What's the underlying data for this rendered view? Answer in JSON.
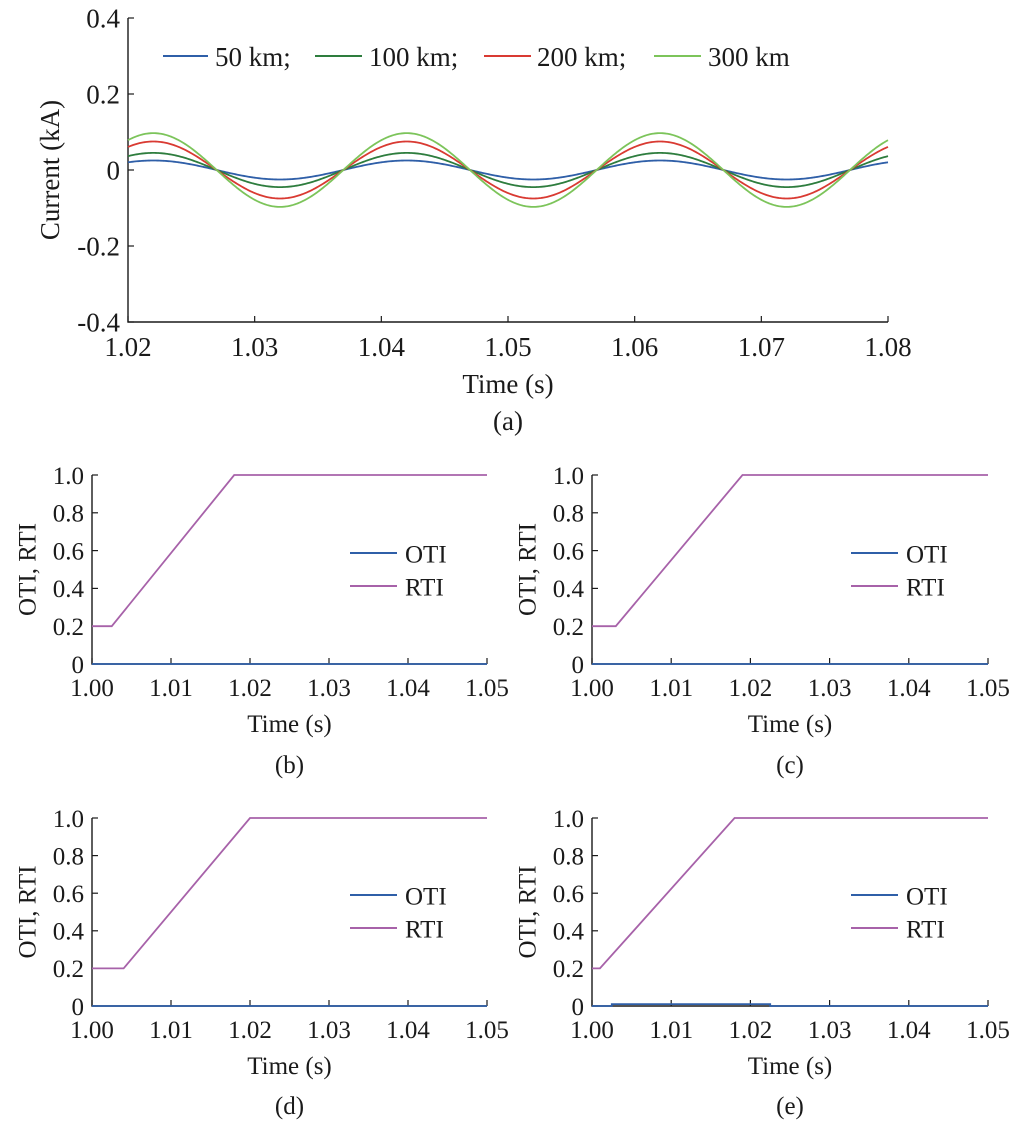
{
  "colors": {
    "km50": "#2f5fa8",
    "km100": "#2e7d3e",
    "km200": "#d93a32",
    "km300": "#7cc45a",
    "oti": "#2f5fa8",
    "rti": "#a762a9"
  },
  "chart_data": [
    {
      "panel": "(a)",
      "type": "line",
      "xlabel": "Time (s)",
      "ylabel": "Current (kA)",
      "xlim": [
        1.02,
        1.08
      ],
      "ylim": [
        -0.4,
        0.4
      ],
      "xticks": [
        "1.02",
        "1.03",
        "1.04",
        "1.05",
        "1.06",
        "1.07",
        "1.08"
      ],
      "yticks": [
        "-0.4",
        "-0.2",
        "0",
        "0.2",
        "0.4"
      ],
      "legend_position": "top",
      "waveform": "sinusoid",
      "frequency_hz": 50,
      "series": [
        {
          "name": "50 km;",
          "amplitude": 0.025,
          "color_key": "km50"
        },
        {
          "name": "100 km;",
          "amplitude": 0.045,
          "color_key": "km100"
        },
        {
          "name": "200 km;",
          "amplitude": 0.075,
          "color_key": "km200"
        },
        {
          "name": "300 km",
          "amplitude": 0.097,
          "color_key": "km300"
        }
      ]
    },
    {
      "panel": "(b)",
      "type": "line",
      "xlabel": "Time (s)",
      "ylabel": "OTI, RTI",
      "xlim": [
        1.0,
        1.05
      ],
      "ylim": [
        0,
        1.0
      ],
      "xticks": [
        "1.00",
        "1.01",
        "1.02",
        "1.03",
        "1.04",
        "1.05"
      ],
      "yticks": [
        "0",
        "0.2",
        "0.4",
        "0.6",
        "0.8",
        "1.0"
      ],
      "legend_position": "right",
      "series": [
        {
          "name": "OTI",
          "color_key": "oti",
          "x": [
            1.0,
            1.05
          ],
          "y": [
            0,
            0
          ]
        },
        {
          "name": "RTI",
          "color_key": "rti",
          "x": [
            1.0,
            1.0025,
            1.018,
            1.05
          ],
          "y": [
            0.2,
            0.2,
            1.0,
            1.0
          ]
        }
      ]
    },
    {
      "panel": "(c)",
      "type": "line",
      "xlabel": "Time (s)",
      "ylabel": "OTI, RTI",
      "xlim": [
        1.0,
        1.05
      ],
      "ylim": [
        0,
        1.0
      ],
      "xticks": [
        "1.00",
        "1.01",
        "1.02",
        "1.03",
        "1.04",
        "1.05"
      ],
      "yticks": [
        "0",
        "0.2",
        "0.4",
        "0.6",
        "0.8",
        "1.0"
      ],
      "legend_position": "right",
      "series": [
        {
          "name": "OTI",
          "color_key": "oti",
          "x": [
            1.0,
            1.05
          ],
          "y": [
            0,
            0
          ]
        },
        {
          "name": "RTI",
          "color_key": "rti",
          "x": [
            1.0,
            1.003,
            1.019,
            1.05
          ],
          "y": [
            0.2,
            0.2,
            1.0,
            1.0
          ]
        }
      ]
    },
    {
      "panel": "(d)",
      "type": "line",
      "xlabel": "Time (s)",
      "ylabel": "OTI, RTI",
      "xlim": [
        1.0,
        1.05
      ],
      "ylim": [
        0,
        1.0
      ],
      "xticks": [
        "1.00",
        "1.01",
        "1.02",
        "1.03",
        "1.04",
        "1.05"
      ],
      "yticks": [
        "0",
        "0.2",
        "0.4",
        "0.6",
        "0.8",
        "1.0"
      ],
      "legend_position": "right",
      "series": [
        {
          "name": "OTI",
          "color_key": "oti",
          "x": [
            1.0,
            1.05
          ],
          "y": [
            0,
            0
          ]
        },
        {
          "name": "RTI",
          "color_key": "rti",
          "x": [
            1.0,
            1.004,
            1.02,
            1.05
          ],
          "y": [
            0.2,
            0.2,
            1.0,
            1.0
          ]
        }
      ]
    },
    {
      "panel": "(e)",
      "type": "line",
      "xlabel": "Time (s)",
      "ylabel": "OTI, RTI",
      "xlim": [
        1.0,
        1.05
      ],
      "ylim": [
        0,
        1.0
      ],
      "xticks": [
        "1.00",
        "1.01",
        "1.02",
        "1.03",
        "1.04",
        "1.05"
      ],
      "yticks": [
        "0",
        "0.2",
        "0.4",
        "0.6",
        "0.8",
        "1.0"
      ],
      "legend_position": "right",
      "series": [
        {
          "name": "OTI",
          "color_key": "oti",
          "x": [
            1.0,
            1.0025,
            1.0025,
            1.0225,
            1.0225,
            1.05
          ],
          "y": [
            0,
            0,
            0.01,
            0.01,
            0,
            0
          ]
        },
        {
          "name": "RTI",
          "color_key": "rti",
          "x": [
            1.0,
            1.001,
            1.018,
            1.05
          ],
          "y": [
            0.2,
            0.2,
            1.0,
            1.0
          ]
        }
      ]
    }
  ]
}
